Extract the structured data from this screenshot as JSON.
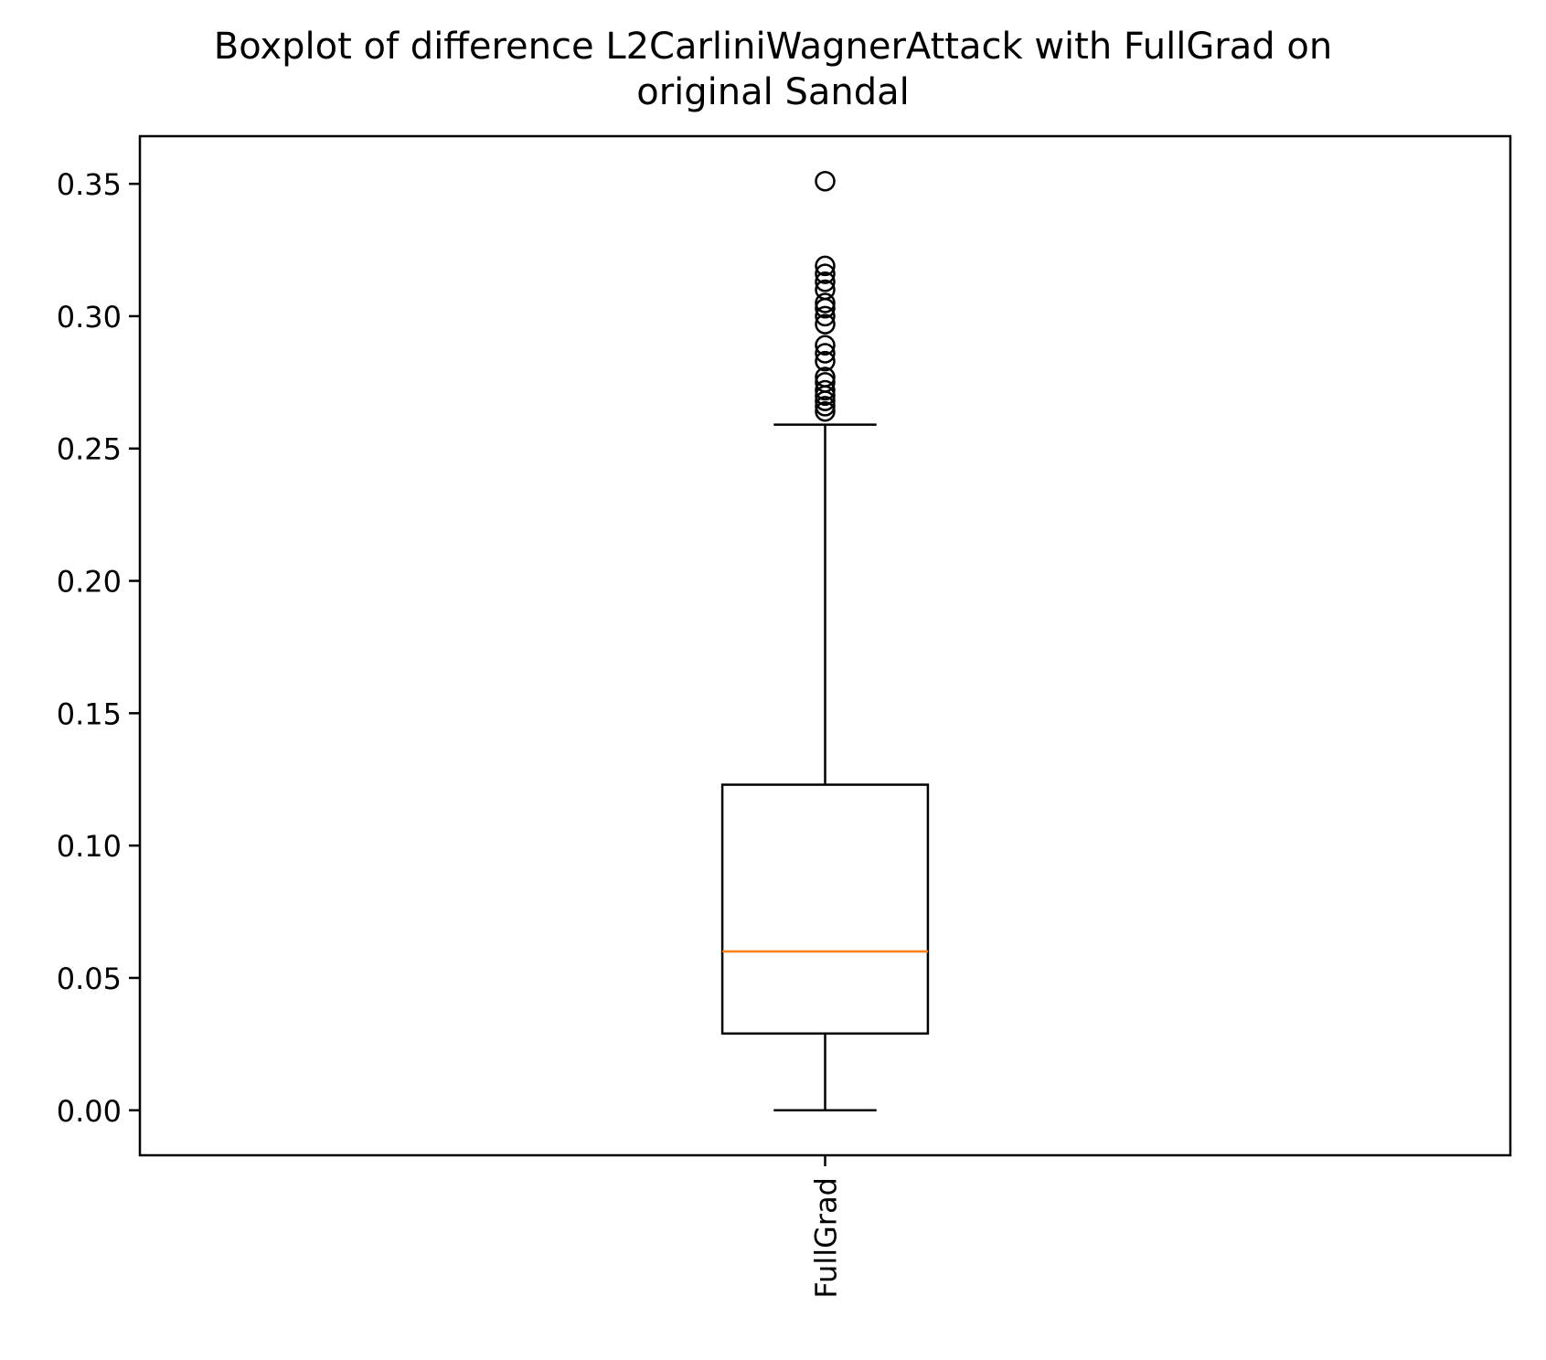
{
  "chart_data": {
    "type": "boxplot",
    "title_lines": [
      "Boxplot of difference L2CarliniWagnerAttack with FullGrad on",
      "original Sandal"
    ],
    "xlabel": "",
    "ylabel": "",
    "ylim": [
      -0.017,
      0.368
    ],
    "yticks": [
      0.0,
      0.05,
      0.1,
      0.15,
      0.2,
      0.25,
      0.3,
      0.35
    ],
    "ytick_labels": [
      "0.00",
      "0.05",
      "0.10",
      "0.15",
      "0.20",
      "0.25",
      "0.30",
      "0.35"
    ],
    "grid": false,
    "categories": [
      "FullGrad"
    ],
    "boxes": [
      {
        "label": "FullGrad",
        "whisker_low": 0.0,
        "q1": 0.029,
        "median": 0.06,
        "q3": 0.123,
        "whisker_high": 0.259,
        "outliers": [
          0.264,
          0.266,
          0.268,
          0.27,
          0.272,
          0.275,
          0.277,
          0.283,
          0.286,
          0.289,
          0.297,
          0.3,
          0.303,
          0.305,
          0.31,
          0.313,
          0.316,
          0.319,
          0.351
        ]
      }
    ],
    "colors": {
      "box": "#000000",
      "median": "#ff7f0e",
      "outlier_edge": "#000000"
    }
  }
}
